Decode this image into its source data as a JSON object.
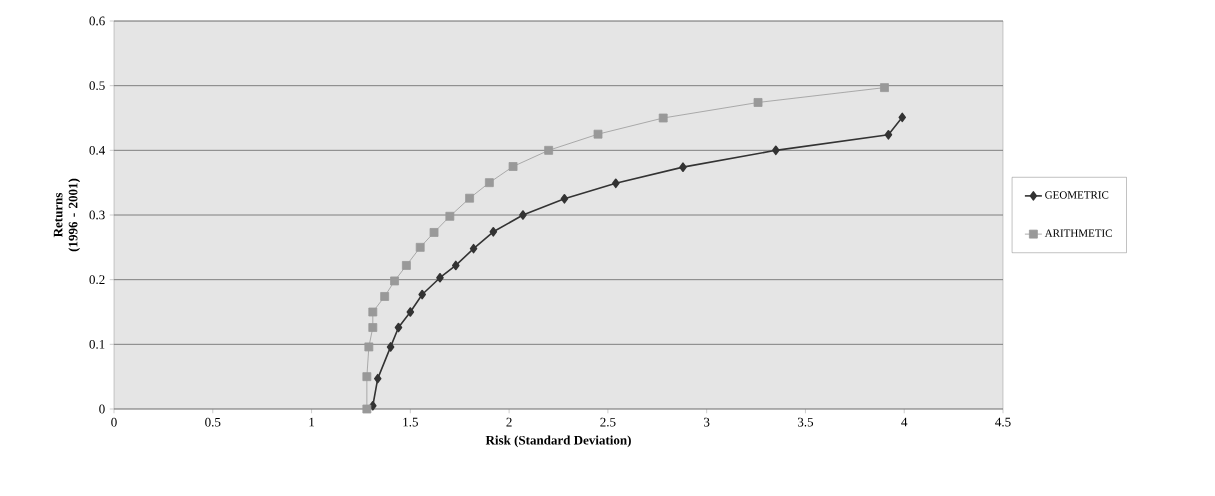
{
  "chart_data": {
    "type": "line",
    "xlabel": "Risk (Standard Deviation)",
    "ylabel": "Returns (1996 - 2001)",
    "xlim": [
      0,
      4.5
    ],
    "ylim": [
      0,
      0.6
    ],
    "xticks": [
      0,
      0.5,
      1,
      1.5,
      2,
      2.5,
      3,
      3.5,
      4,
      4.5
    ],
    "yticks": [
      0,
      0.1,
      0.2,
      0.3,
      0.4,
      0.5,
      0.6
    ],
    "grid": "y",
    "legend": "right",
    "series": [
      {
        "name": "GEOMETRIC",
        "color": "#333333",
        "marker": "diamond",
        "x": [
          1.31,
          1.335,
          1.4,
          1.44,
          1.5,
          1.56,
          1.65,
          1.73,
          1.82,
          1.92,
          2.07,
          2.28,
          2.54,
          2.88,
          3.35,
          3.92,
          3.99
        ],
        "values": [
          0.005,
          0.047,
          0.096,
          0.126,
          0.15,
          0.177,
          0.203,
          0.222,
          0.248,
          0.274,
          0.3,
          0.325,
          0.349,
          0.374,
          0.4,
          0.424,
          0.451
        ]
      },
      {
        "name": "ARITHMETIC",
        "color": "#999999",
        "marker": "square",
        "x": [
          1.28,
          1.28,
          1.29,
          1.31,
          1.31,
          1.37,
          1.42,
          1.48,
          1.55,
          1.62,
          1.7,
          1.8,
          1.9,
          2.02,
          2.2,
          2.45,
          2.78,
          3.26,
          3.9
        ],
        "values": [
          0.0,
          0.05,
          0.096,
          0.126,
          0.15,
          0.174,
          0.198,
          0.222,
          0.25,
          0.273,
          0.298,
          0.326,
          0.35,
          0.375,
          0.4,
          0.425,
          0.45,
          0.474,
          0.497
        ]
      }
    ]
  }
}
